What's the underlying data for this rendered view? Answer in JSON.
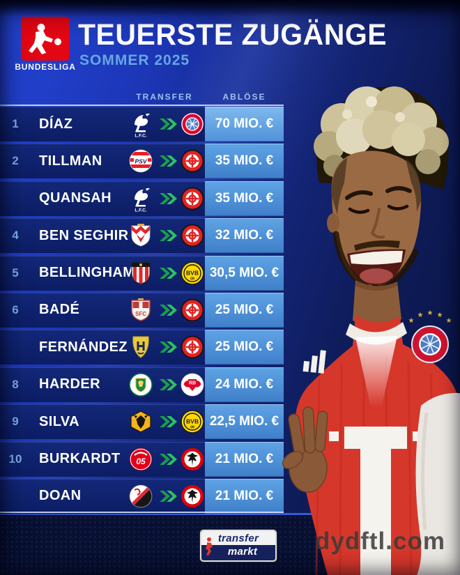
{
  "header": {
    "badge_label": "BUNDESLIGA",
    "title": "TEUERSTE ZUGÄNGE",
    "subtitle": "SOMMER 2025"
  },
  "table": {
    "col_transfer": "TRANSFER",
    "col_fee": "ABLÖSE",
    "rows": [
      {
        "rank": "1",
        "player": "DÍAZ",
        "from": "liverpool",
        "to": "bayern-muenchen",
        "fee": "70 MIO. €"
      },
      {
        "rank": "2",
        "player": "TILLMAN",
        "from": "psv-eindhoven",
        "to": "bayer-leverkusen",
        "fee": "35 MIO. €"
      },
      {
        "rank": "",
        "player": "QUANSAH",
        "from": "liverpool",
        "to": "bayer-leverkusen",
        "fee": "35 MIO. €"
      },
      {
        "rank": "4",
        "player": "BEN SEGHIR",
        "from": "as-monaco",
        "to": "bayer-leverkusen",
        "fee": "32 MIO. €"
      },
      {
        "rank": "5",
        "player": "BELLINGHAM",
        "from": "sunderland",
        "to": "borussia-dortmund",
        "fee": "30,5 MIO. €"
      },
      {
        "rank": "6",
        "player": "BADÉ",
        "from": "sevilla",
        "to": "bayer-leverkusen",
        "fee": "25 MIO. €"
      },
      {
        "rank": "",
        "player": "FERNÁNDEZ",
        "from": "al-qadsiah",
        "to": "bayer-leverkusen",
        "fee": "25 MIO. €"
      },
      {
        "rank": "8",
        "player": "HARDER",
        "from": "sporting-cp",
        "to": "rb-leipzig",
        "fee": "24 MIO. €"
      },
      {
        "rank": "9",
        "player": "SILVA",
        "from": "wolverhampton",
        "to": "borussia-dortmund",
        "fee": "22,5 MIO. €"
      },
      {
        "rank": "10",
        "player": "BURKARDT",
        "from": "mainz-05",
        "to": "eintracht-frankfurt",
        "fee": "21 MIO. €"
      },
      {
        "rank": "",
        "player": "DOAN",
        "from": "sc-freiburg",
        "to": "eintracht-frankfurt",
        "fee": "21 MIO. €"
      }
    ]
  },
  "chart_data": {
    "type": "table",
    "title": "TEUERSTE ZUGÄNGE",
    "subtitle": "SOMMER 2025",
    "columns": [
      "rank",
      "player",
      "from_club",
      "to_club",
      "fee_mio_eur"
    ],
    "rows": [
      [
        "1",
        "DÍAZ",
        "Liverpool FC",
        "FC Bayern München",
        70
      ],
      [
        "2",
        "TILLMAN",
        "PSV Eindhoven",
        "Bayer Leverkusen",
        35
      ],
      [
        "",
        "QUANSAH",
        "Liverpool FC",
        "Bayer Leverkusen",
        35
      ],
      [
        "4",
        "BEN SEGHIR",
        "AS Monaco",
        "Bayer Leverkusen",
        32
      ],
      [
        "5",
        "BELLINGHAM",
        "Sunderland AFC",
        "Borussia Dortmund",
        30.5
      ],
      [
        "6",
        "BADÉ",
        "Sevilla FC",
        "Bayer Leverkusen",
        25
      ],
      [
        "",
        "FERNÁNDEZ",
        "Al-Qadsiah",
        "Bayer Leverkusen",
        25
      ],
      [
        "8",
        "HARDER",
        "Sporting CP",
        "RB Leipzig",
        24
      ],
      [
        "9",
        "SILVA",
        "Wolverhampton",
        "Borussia Dortmund",
        22.5
      ],
      [
        "10",
        "BURKARDT",
        "Mainz 05",
        "Eintracht Frankfurt",
        21
      ],
      [
        "",
        "DOAN",
        "SC Freiburg",
        "Eintracht Frankfurt",
        21
      ]
    ]
  },
  "logo_texts": {
    "liverpool": "L.F.C.",
    "psv": "PSV",
    "bvb": "BVB",
    "bvb_year": "09",
    "mainz": "05",
    "leipzig": "RB",
    "sevilla": "SFC"
  },
  "footer": {
    "brand_top": "transfer",
    "brand_bottom": "markt",
    "watermark": "dydftl.com"
  },
  "colors": {
    "accent_red": "#e30613",
    "subtitle_blue": "#64a8e2",
    "rank_blue": "#7bb0e8",
    "fee_cell_blue": "#4a8fd6",
    "row_navy": "#0e2173",
    "arrow_green": "#2cc161"
  }
}
